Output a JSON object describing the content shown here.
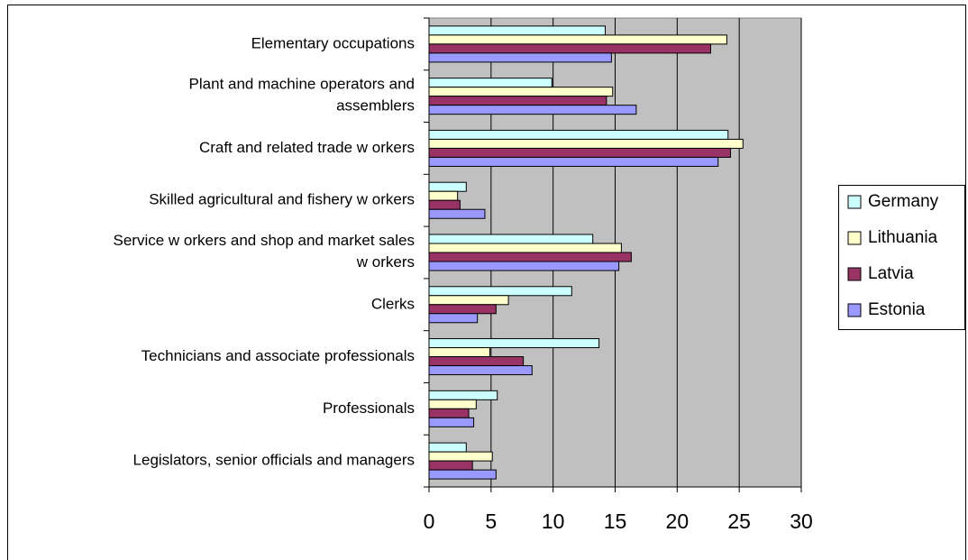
{
  "chart_data": {
    "type": "bar",
    "orientation": "horizontal",
    "categories": [
      "Elementary occupations",
      "Plant and machine operators and\nassemblers",
      "Craft and related trade w orkers",
      "Skilled agricultural and fishery w orkers",
      "Service w orkers and shop and market sales\nw orkers",
      "Clerks",
      "Technicians and associate professionals",
      "Professionals",
      "Legislators, senior officials and managers"
    ],
    "series": [
      {
        "name": "Germany",
        "color": "#ccffff",
        "values": [
          14.2,
          9.9,
          24.1,
          3.0,
          13.2,
          11.5,
          13.7,
          5.5,
          3.0
        ]
      },
      {
        "name": "Lithuania",
        "color": "#ffffcc",
        "values": [
          24.0,
          14.8,
          25.3,
          2.3,
          15.5,
          6.4,
          4.9,
          3.8,
          5.1
        ]
      },
      {
        "name": "Latvia",
        "color": "#993366",
        "values": [
          22.7,
          14.3,
          24.3,
          2.5,
          16.3,
          5.4,
          7.6,
          3.2,
          3.5
        ]
      },
      {
        "name": "Estonia",
        "color": "#9999ff",
        "values": [
          14.7,
          16.7,
          23.3,
          4.5,
          15.3,
          3.9,
          8.3,
          3.6,
          5.4
        ]
      }
    ],
    "xlim": [
      0,
      30
    ],
    "xticks": [
      0,
      5,
      10,
      15,
      20,
      25,
      30
    ],
    "grid": true,
    "legend": "right"
  }
}
